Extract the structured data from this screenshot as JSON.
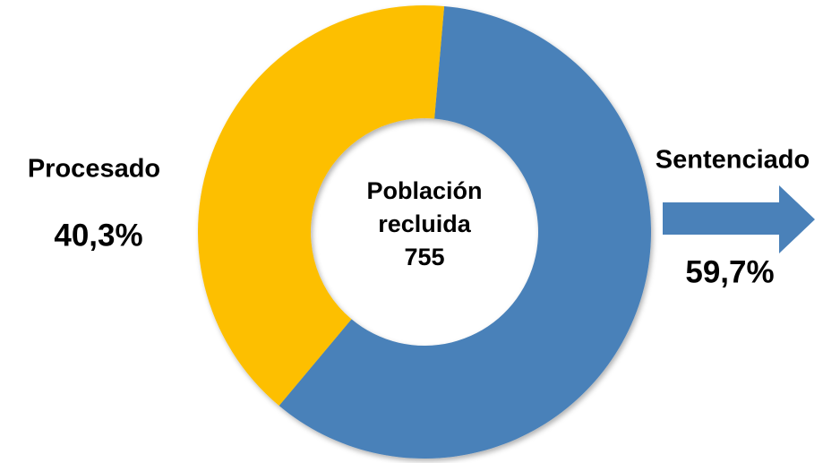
{
  "chart_data": {
    "type": "donut",
    "categories": [
      "Sentenciado",
      "Procesado"
    ],
    "values": [
      59.7,
      40.3
    ],
    "value_labels": [
      "59,7%",
      "40,3%"
    ],
    "colors": [
      "#4a81b9",
      "#fdbf00"
    ],
    "center_label": "Población recluida",
    "center_value": 755
  }
}
